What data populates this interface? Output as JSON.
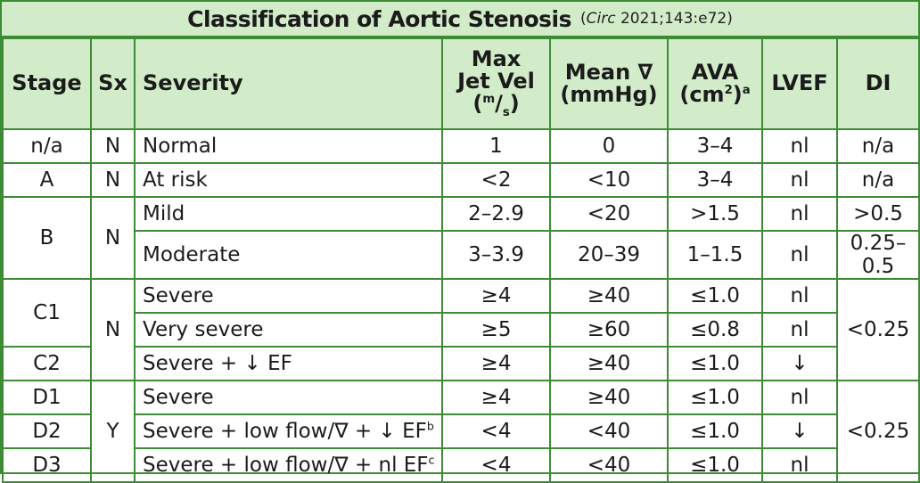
{
  "title": {
    "main": "Classification of Aortic Stenosis",
    "citation_prefix": "(",
    "citation_journal": "Circ",
    "citation_rest": " 2021;143:e72)"
  },
  "headers": {
    "stage": "Stage",
    "sx": "Sx",
    "severity": "Severity",
    "max_jet_vel_line1": "Max",
    "max_jet_vel_line2": "Jet Vel",
    "max_jet_vel_unit_open": "(",
    "max_jet_vel_unit_m": "m",
    "max_jet_vel_unit_slash": "/",
    "max_jet_vel_unit_s": "s",
    "max_jet_vel_unit_close": ")",
    "mean_grad_line1": "Mean ∇",
    "mean_grad_line2": "(mmHg)",
    "ava_line1": "AVA",
    "ava_line2": "(cm",
    "ava_sup2": "2",
    "ava_close": ")",
    "ava_note": "a",
    "lvef": "LVEF",
    "di": "DI"
  },
  "rows": {
    "normal": {
      "stage": "n/a",
      "sx": "N",
      "severity": "Normal",
      "vel": "1",
      "grad": "0",
      "ava": "3–4",
      "lvef": "nl",
      "di": "n/a"
    },
    "a": {
      "stage": "A",
      "sx": "N",
      "severity": "At risk",
      "vel": "<2",
      "grad": "<10",
      "ava": "3–4",
      "lvef": "nl",
      "di": "n/a"
    },
    "b_mild": {
      "stage": "B",
      "sx": "N",
      "severity": "Mild",
      "vel": "2–2.9",
      "grad": "<20",
      "ava": ">1.5",
      "lvef": "nl",
      "di": ">0.5"
    },
    "b_mod": {
      "severity": "Moderate",
      "vel": "3–3.9",
      "grad": "20–39",
      "ava": "1–1.5",
      "lvef": "nl",
      "di": "0.25–0.5"
    },
    "c1_severe": {
      "stage": "C1",
      "sx": "N",
      "severity": "Severe",
      "vel": "≥4",
      "grad": "≥40",
      "ava": "≤1.0",
      "lvef": "nl",
      "di": "<0.25"
    },
    "c1_very": {
      "severity": "Very severe",
      "vel": "≥5",
      "grad": "≥60",
      "ava": "≤0.8",
      "lvef": "nl"
    },
    "c2": {
      "stage": "C2",
      "severity": "Severe + ↓ EF",
      "vel": "≥4",
      "grad": "≥40",
      "ava": "≤1.0",
      "lvef": "↓"
    },
    "d1": {
      "stage": "D1",
      "sx": "Y",
      "severity": "Severe",
      "vel": "≥4",
      "grad": "≥40",
      "ava": "≤1.0",
      "lvef": "nl",
      "di": "<0.25"
    },
    "d2": {
      "stage": "D2",
      "severity": "Severe + low flow/∇ + ↓ EF",
      "severity_note": "b",
      "vel": "<4",
      "grad": "<40",
      "ava": "≤1.0",
      "lvef": "↓"
    },
    "d3": {
      "stage": "D3",
      "severity": "Severe + low flow/∇ + nl EF",
      "severity_note": "c",
      "vel": "<4",
      "grad": "<40",
      "ava": "≤1.0",
      "lvef": "nl"
    }
  },
  "colors": {
    "border": "#3d8c35",
    "header_fill": "#d2ecc9"
  }
}
